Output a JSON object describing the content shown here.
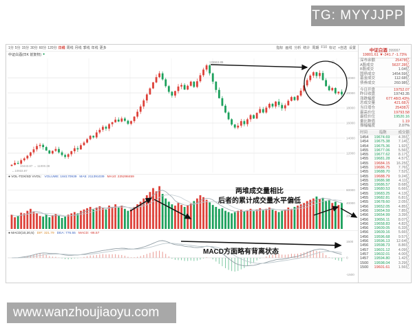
{
  "watermark": {
    "tg": "TG: MYYJJPP"
  },
  "footer": {
    "url": "www.wanzhoujiaoyu.com"
  },
  "toolbar": {
    "periods": [
      "1分",
      "5分",
      "15分",
      "30分",
      "60分",
      "120分",
      "日线",
      "周线",
      "月线",
      "季线",
      "年线",
      "更多"
    ],
    "active_period": "日线",
    "right_menu": [
      "指标",
      "画线",
      "分析",
      "统计",
      "周期",
      "F10",
      "标记",
      "+自选",
      "设置"
    ],
    "subtitle": "中证白酒(日K 前复权)",
    "pane_icons": "○ ⊡"
  },
  "annotations": {
    "vol_line1": "两堆成交量相比",
    "vol_line2": "后者的累计成交量水平偏低",
    "macd_line": "MACD方面略有背离状态",
    "peak_label": "↑23663.85",
    "low_label1": "10443.87 → 11000.38",
    "low_label2": "←10933.87"
  },
  "indicators": {
    "vol": {
      "name": "VOL-TDX/SD VVOL:",
      "volume": "VOLUME: 184170939",
      "ma5": "MA5: 211391039",
      "ma10": "MA10: 225298459"
    },
    "macd": {
      "name": "MACD(10,20,5)",
      "dif": "DIF: 321.79",
      "dea": "DEA: 776.55",
      "macd": "MACD: -86.57"
    }
  },
  "panel": {
    "name": "中证白酒",
    "code": "399997",
    "price": "19801.61",
    "change": "▼-341.7",
    "pct": "-1.73%",
    "fields": [
      {
        "l": "深市余额",
        "v": "25478亿",
        "c": "r"
      },
      {
        "l": "A股成交",
        "v": "5637.28亿",
        "c": "r"
      },
      {
        "l": "B股成交",
        "v": "1.04亿",
        "c": "k"
      },
      {
        "l": "国债成交",
        "v": "1454.59亿",
        "c": "k"
      },
      {
        "l": "基金成交",
        "v": "112.68亿",
        "c": "k"
      },
      {
        "l": "债券成交",
        "v": "260.98亿",
        "c": "k"
      }
    ],
    "fields2": [
      {
        "l": "今日开盘",
        "v": "19752.07",
        "c": "r"
      },
      {
        "l": "昨日收盘",
        "v": "19743.35",
        "c": "k"
      },
      {
        "l": "涨跌幅度",
        "v": "677.48/3.43%",
        "c": "r"
      },
      {
        "l": "总成交量",
        "v": "421.68万",
        "c": "r"
      },
      {
        "l": "当日增仓",
        "v": "25438万",
        "c": "r"
      },
      {
        "l": "最高价位",
        "v": "19793.58",
        "c": "r"
      },
      {
        "l": "最低价位",
        "v": "19520.16",
        "c": "g"
      },
      {
        "l": "量比数值",
        "v": "1.19",
        "c": "r"
      },
      {
        "l": "振幅幅度",
        "v": "2.07%",
        "c": "k"
      }
    ],
    "tick_headers": [
      "时间",
      "指数",
      "成交额"
    ],
    "ticks": [
      [
        "1454",
        "19674.69",
        "4.35亿",
        "g"
      ],
      [
        "1454",
        "19675.38",
        "7.14亿",
        "g"
      ],
      [
        "1454",
        "19675.36",
        "1.92亿",
        "g"
      ],
      [
        "1455",
        "19677.06",
        "5.56亿",
        "g"
      ],
      [
        "1455",
        "19677.62",
        "8.17亿",
        "g"
      ],
      [
        "1455",
        "19681.28",
        "4.57亿",
        "g"
      ],
      [
        "1455",
        "19684.15",
        "16.25亿",
        "r"
      ],
      [
        "1455",
        "19686.75",
        "7.76亿",
        "r"
      ],
      [
        "1455",
        "19688.70",
        "7.52亿",
        "g"
      ],
      [
        "1455",
        "19688.79",
        "9.24亿",
        "r"
      ],
      [
        "1455",
        "19686.98",
        "4.11亿",
        "g"
      ],
      [
        "1455",
        "19686.57",
        "8.68亿",
        "g"
      ],
      [
        "1455",
        "19680.53",
        "6.66亿",
        "g"
      ],
      [
        "1455",
        "19683.25",
        "4.13亿",
        "g"
      ],
      [
        "1455",
        "19682.81",
        "6.81亿",
        "g"
      ],
      [
        "1455",
        "19678.60",
        "2.05亿",
        "g"
      ],
      [
        "1456",
        "19652.05",
        "4.85亿",
        "g"
      ],
      [
        "1456",
        "19654.59",
        "7.85亿",
        "g"
      ],
      [
        "1456",
        "19654.99",
        "3.39亿",
        "g"
      ],
      [
        "1456",
        "19656.11",
        "8.07亿",
        "g"
      ],
      [
        "1456",
        "19658.83",
        "4.82亿",
        "g"
      ],
      [
        "1456",
        "19609.05",
        "6.33亿",
        "g"
      ],
      [
        "1456",
        "19609.16",
        "5.66亿",
        "g"
      ],
      [
        "1456",
        "19596.68",
        "9.57亿",
        "g"
      ],
      [
        "1456",
        "19596.13",
        "12.64亿",
        "g"
      ],
      [
        "1456",
        "19598.73",
        "8.86亿",
        "g"
      ],
      [
        "1457",
        "19601.12",
        "4.09亿",
        "g"
      ],
      [
        "1457",
        "19602.01",
        "4.00亿",
        "g"
      ],
      [
        "1457",
        "19594.80",
        "1.42亿",
        "g"
      ],
      [
        "1500",
        "19598.04",
        "3.29亿",
        "g"
      ],
      [
        "1500",
        "19601.61",
        "1.56亿",
        "r"
      ]
    ]
  },
  "chart_data": {
    "type": "candlestick+volume+macd",
    "title": "中证白酒(日K 前复权)",
    "peak_price": 23663.85,
    "last_price": 19801.61,
    "note": "closes per bar; opens derived from prior close",
    "closes": [
      10450,
      10700,
      10600,
      11050,
      11300,
      11650,
      12100,
      12500,
      12950,
      13100,
      12800,
      12350,
      11950,
      12300,
      12550,
      12100,
      11750,
      11500,
      11850,
      12250,
      12650,
      12500,
      13050,
      13400,
      13850,
      14300,
      14100,
      14750,
      15100,
      15500,
      15250,
      15850,
      16100,
      16450,
      16200,
      16600,
      16300,
      15900,
      16250,
      16850,
      17500,
      18200,
      19000,
      19800,
      20600,
      21400,
      22100,
      22600,
      21800,
      20900,
      20150,
      19650,
      20250,
      20850,
      21050,
      20450,
      20950,
      21500,
      20800,
      21550,
      22350,
      23100,
      23663,
      22600,
      21500,
      20400,
      19300,
      18300,
      17400,
      16500,
      15800,
      15400,
      15650,
      16250,
      15850,
      16500,
      17050,
      16600,
      17350,
      17850,
      17400,
      18050,
      18550,
      18200,
      18850,
      18400,
      17950,
      18350,
      18950,
      19450,
      19050,
      19650,
      20300,
      21000,
      21700,
      22300,
      22750,
      22250,
      22650,
      21700,
      20900,
      20350,
      20650,
      19950,
      20150,
      19802
    ],
    "volumes": [
      22000,
      18000,
      20000,
      25000,
      24000,
      28000,
      31000,
      26000,
      24000,
      20000,
      19000,
      22000,
      18000,
      21000,
      23000,
      20000,
      17000,
      19000,
      22000,
      24000,
      26000,
      24000,
      28000,
      30000,
      32000,
      34000,
      30000,
      33000,
      35000,
      32000,
      30000,
      36000,
      34000,
      38000,
      33000,
      36000,
      31000,
      28000,
      30000,
      34000,
      38000,
      42000,
      47000,
      52000,
      57000,
      63000,
      58000,
      66000,
      54000,
      47000,
      42000,
      38000,
      36000,
      40000,
      37000,
      34000,
      36000,
      39000,
      43000,
      47000,
      52000,
      49000,
      45000,
      41000,
      37000,
      34000,
      31000,
      32000,
      28000,
      26000,
      24000,
      26000,
      28000,
      30000,
      27000,
      29000,
      31000,
      28000,
      30000,
      32000,
      29000,
      31000,
      33000,
      30000,
      28000,
      26000,
      28000,
      30000,
      33000,
      31000,
      34000,
      36000,
      38000,
      40000,
      43000,
      45000,
      47000,
      50000,
      46000,
      48000,
      43000,
      45000,
      40000,
      42000,
      37000,
      40000
    ],
    "price_axis": [
      "22000",
      "20000",
      "18000",
      "16000",
      "14000",
      "12000"
    ],
    "volume_axis": [
      "60000",
      "40000",
      "20000"
    ],
    "macd_axis": [
      "1500",
      "0",
      "-1500"
    ],
    "colors": {
      "up": "#dd4038",
      "down": "#1ca05c",
      "annotation": "#111111"
    }
  }
}
